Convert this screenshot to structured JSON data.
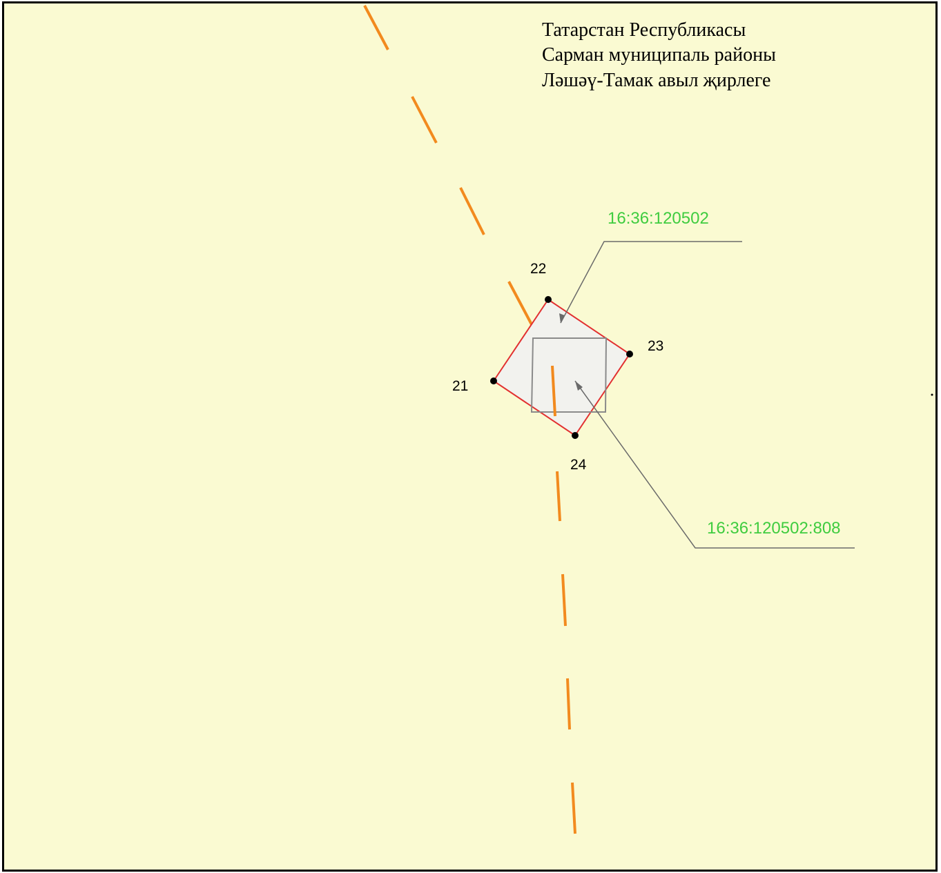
{
  "header": {
    "lines": [
      "Татарстан Республикасы",
      "Сарман муниципаль районы",
      "Ләшәү-Тамак авыл җирлеге"
    ]
  },
  "points": [
    "21",
    "22",
    "23",
    "24"
  ],
  "labels": {
    "quarter": "16:36:120502",
    "parcel": "16:36:120502:808"
  }
}
